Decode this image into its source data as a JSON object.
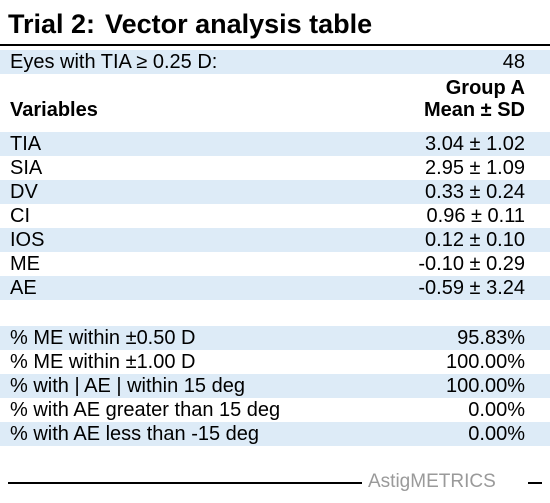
{
  "title": {
    "number": "Trial 2:",
    "text": "Vector analysis table"
  },
  "eyes_row": {
    "label": "Eyes with TIA ≥ 0.25 D:",
    "value": "48"
  },
  "header": {
    "group": "Group A",
    "stat": "Mean ± SD",
    "variables": "Variables"
  },
  "variables": [
    {
      "label": "TIA",
      "value": "3.04 ± 1.02"
    },
    {
      "label": "SIA",
      "value": "2.95 ± 1.09"
    },
    {
      "label": "DV",
      "value": "0.33 ± 0.24"
    },
    {
      "label": "CI",
      "value": "0.96 ± 0.11"
    },
    {
      "label": "IOS",
      "value": "0.12 ± 0.10"
    },
    {
      "label": "ME",
      "value": "-0.10 ± 0.29"
    },
    {
      "label": "AE",
      "value": "-0.59 ± 3.24"
    }
  ],
  "percentages": [
    {
      "label": "% ME within ±0.50 D",
      "value": "95.83%"
    },
    {
      "label": "% ME within ±1.00 D",
      "value": "100.00%"
    },
    {
      "label": "% with | AE | within 15 deg",
      "value": "100.00%"
    },
    {
      "label": "% with AE greater than 15 deg",
      "value": "0.00%"
    },
    {
      "label": "% with AE less than -15 deg",
      "value": "0.00%"
    }
  ],
  "brand": "AstigMETRICS",
  "colors": {
    "row_shade": "#ddebf7",
    "brand_text": "#9a9a9a"
  }
}
